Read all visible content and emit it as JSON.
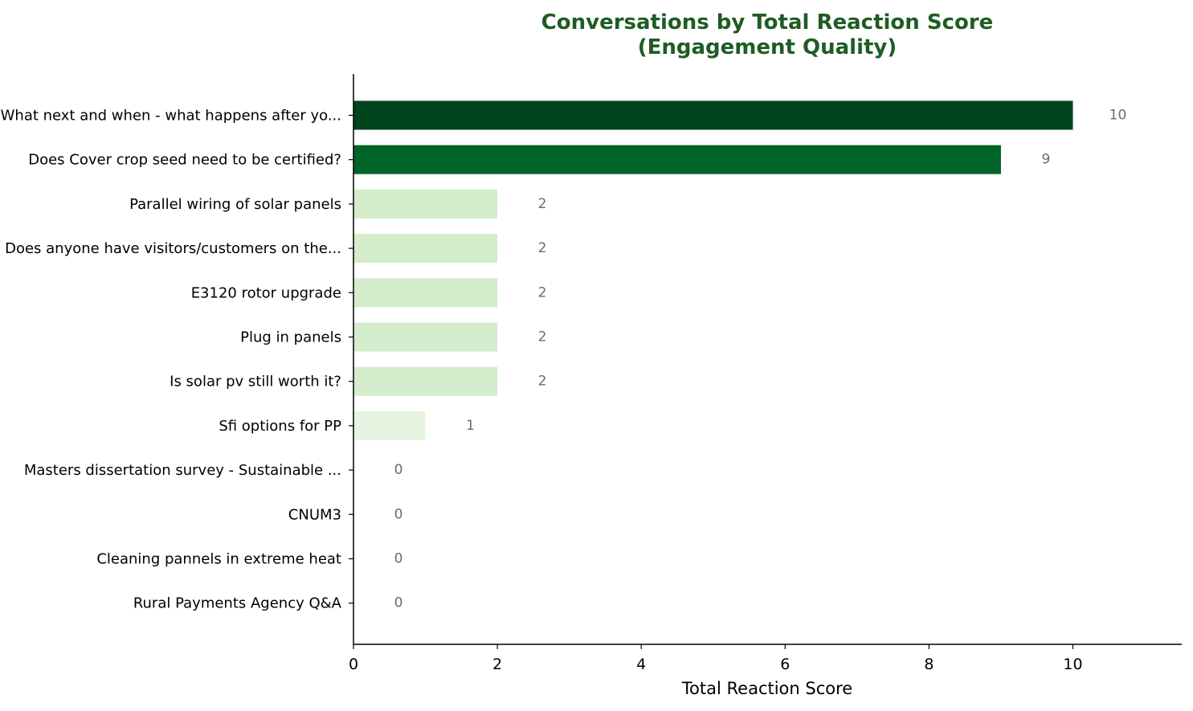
{
  "chart_data": {
    "type": "bar",
    "orientation": "horizontal",
    "title_lines": [
      "Conversations by Total Reaction Score",
      "(Engagement Quality)"
    ],
    "xlabel": "Total Reaction Score",
    "ylabel": "",
    "xlim": [
      0,
      11.5
    ],
    "xticks": [
      0,
      2,
      4,
      6,
      8,
      10
    ],
    "grid": false,
    "categories": [
      "What next and when - what happens after yo...",
      "Does Cover crop seed need to be certified?",
      "Parallel wiring of solar panels",
      "Does anyone have visitors/customers on the...",
      "E3120 rotor upgrade",
      "Plug in panels",
      "Is solar pv still worth it?",
      "Sfi options for PP",
      "Masters dissertation survey - Sustainable ...",
      "CNUM3",
      "Cleaning pannels in extreme heat",
      "Rural Payments Agency Q&A"
    ],
    "values": [
      10,
      9,
      2,
      2,
      2,
      2,
      2,
      1,
      0,
      0,
      0,
      0
    ],
    "colors": [
      "#00441b",
      "#006428",
      "#d3edcd",
      "#d3edcd",
      "#d3edcd",
      "#d3edcd",
      "#d3edcd",
      "#e6f5e1",
      "#f7fcf5",
      "#f7fcf5",
      "#f7fcf5",
      "#f7fcf5"
    ],
    "value_label_color": "#5c6f7c",
    "title_color": "#1e5c24"
  }
}
